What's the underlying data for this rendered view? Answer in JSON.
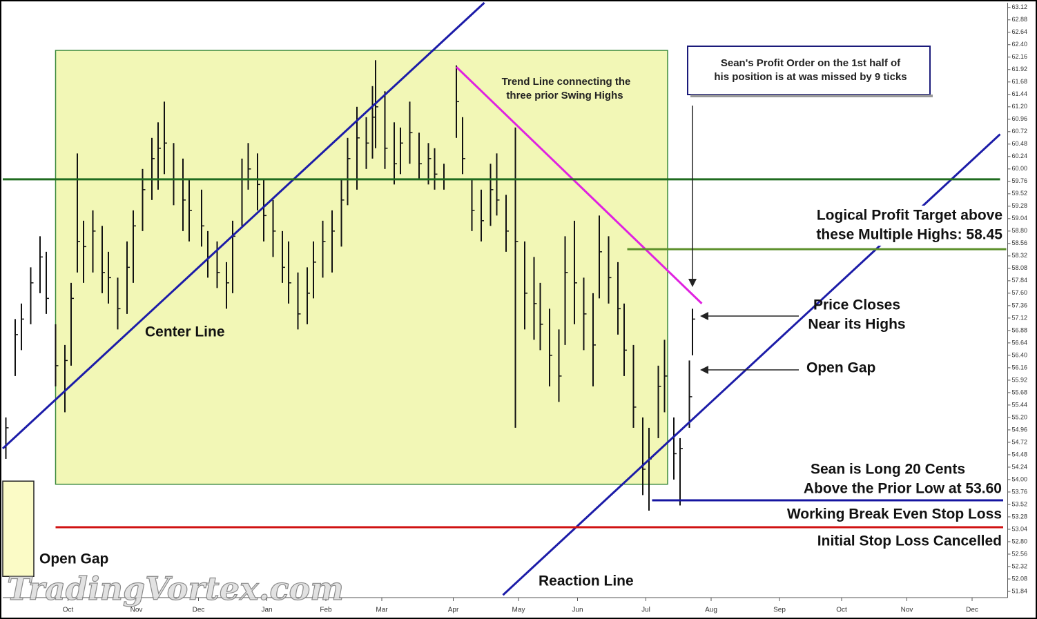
{
  "chart_data": {
    "type": "ohlc",
    "xlim": [
      0,
      323
    ],
    "ylim": [
      51.72,
      63.21
    ],
    "xticks": [
      {
        "value": 21,
        "label": "Oct"
      },
      {
        "value": 43,
        "label": "Nov"
      },
      {
        "value": 63,
        "label": "Dec"
      },
      {
        "value": 85,
        "label": "Jan"
      },
      {
        "value": 104,
        "label": "Feb"
      },
      {
        "value": 122,
        "label": "Mar"
      },
      {
        "value": 145,
        "label": "Apr"
      },
      {
        "value": 166,
        "label": "May"
      },
      {
        "value": 185,
        "label": "Jun"
      },
      {
        "value": 207,
        "label": "Jul"
      },
      {
        "value": 228,
        "label": "Aug"
      },
      {
        "value": 250,
        "label": "Sep"
      },
      {
        "value": 270,
        "label": "Oct"
      },
      {
        "value": 291,
        "label": "Nov"
      },
      {
        "value": 312,
        "label": "Dec"
      }
    ],
    "yticks": [
      63.12,
      62.88,
      62.64,
      {
        "value": 62.4,
        "label": "62.40"
      },
      62.16,
      61.92,
      61.68,
      61.44,
      {
        "value": 61.2,
        "label": "61.20"
      },
      60.96,
      60.72,
      60.48,
      60.24,
      {
        "value": 60,
        "label": "60.00"
      },
      59.76,
      59.52,
      59.28,
      59.04,
      {
        "value": 58.8,
        "label": "58.80"
      },
      58.56,
      58.32,
      58.08,
      57.84,
      {
        "value": 57.6,
        "label": "57.60"
      },
      57.36,
      57.12,
      56.88,
      56.64,
      {
        "value": 56.4,
        "label": "56.40"
      },
      56.16,
      55.92,
      55.68,
      55.44,
      {
        "value": 55.2,
        "label": "55.20"
      },
      54.96,
      54.72,
      54.48,
      54.24,
      {
        "value": 54,
        "label": "54.00"
      },
      53.76,
      53.52,
      53.28,
      53.04,
      {
        "value": 52.8,
        "label": "52.80"
      },
      52.56,
      52.32,
      52.08,
      51.84
    ],
    "color": "#111111",
    "bars": [
      {
        "x": 1,
        "high": 55.2,
        "low": 54.4,
        "close": 55.0
      },
      {
        "x": 4,
        "high": 57.1,
        "low": 56.0,
        "close": 56.8
      },
      {
        "x": 6,
        "high": 57.4,
        "low": 56.5,
        "close": 57.1
      },
      {
        "x": 9,
        "high": 58.1,
        "low": 57.0,
        "close": 57.8
      },
      {
        "x": 12,
        "high": 58.7,
        "low": 57.6,
        "close": 58.3
      },
      {
        "x": 14,
        "high": 58.4,
        "low": 57.2,
        "close": 57.5
      },
      {
        "x": 17,
        "high": 57.0,
        "low": 55.8,
        "close": 56.2
      },
      {
        "x": 20,
        "high": 56.6,
        "low": 55.3,
        "close": 56.3
      },
      {
        "x": 22,
        "high": 57.8,
        "low": 56.2,
        "close": 57.5
      },
      {
        "x": 24,
        "high": 60.3,
        "low": 58.0,
        "close": 58.6
      },
      {
        "x": 26,
        "high": 59.0,
        "low": 57.8,
        "close": 58.5
      },
      {
        "x": 29,
        "high": 59.2,
        "low": 58.0,
        "close": 58.8
      },
      {
        "x": 32,
        "high": 58.9,
        "low": 57.6,
        "close": 58.0
      },
      {
        "x": 34,
        "high": 58.4,
        "low": 57.4,
        "close": 57.9
      },
      {
        "x": 37,
        "high": 57.9,
        "low": 56.9,
        "close": 57.3
      },
      {
        "x": 40,
        "high": 58.6,
        "low": 57.2,
        "close": 58.1
      },
      {
        "x": 42,
        "high": 59.2,
        "low": 57.8,
        "close": 58.9
      },
      {
        "x": 45,
        "high": 60.0,
        "low": 58.8,
        "close": 59.6
      },
      {
        "x": 48,
        "high": 60.6,
        "low": 59.4,
        "close": 60.2
      },
      {
        "x": 50,
        "high": 60.9,
        "low": 59.6,
        "close": 60.4
      },
      {
        "x": 52,
        "high": 61.3,
        "low": 59.9,
        "close": 60.5
      },
      {
        "x": 55,
        "high": 60.5,
        "low": 59.3,
        "close": 59.8
      },
      {
        "x": 58,
        "high": 60.2,
        "low": 58.8,
        "close": 59.4
      },
      {
        "x": 60,
        "high": 59.8,
        "low": 58.6,
        "close": 59.2
      },
      {
        "x": 64,
        "high": 59.6,
        "low": 58.5,
        "close": 58.9
      },
      {
        "x": 66,
        "high": 58.8,
        "low": 57.9,
        "close": 58.3
      },
      {
        "x": 69,
        "high": 58.6,
        "low": 57.7,
        "close": 58.0
      },
      {
        "x": 72,
        "high": 58.2,
        "low": 57.3,
        "close": 57.8
      },
      {
        "x": 74,
        "high": 59.0,
        "low": 57.6,
        "close": 58.7
      },
      {
        "x": 77,
        "high": 60.2,
        "low": 58.9,
        "close": 59.8
      },
      {
        "x": 79,
        "high": 60.5,
        "low": 59.6,
        "close": 60.0
      },
      {
        "x": 82,
        "high": 60.3,
        "low": 59.2,
        "close": 59.7
      },
      {
        "x": 84,
        "high": 59.8,
        "low": 58.6,
        "close": 59.1
      },
      {
        "x": 87,
        "high": 59.4,
        "low": 58.3,
        "close": 58.8
      },
      {
        "x": 90,
        "high": 58.8,
        "low": 57.8,
        "close": 58.1
      },
      {
        "x": 92,
        "high": 58.6,
        "low": 57.4,
        "close": 57.8
      },
      {
        "x": 95,
        "high": 58.0,
        "low": 56.9,
        "close": 57.2
      },
      {
        "x": 98,
        "high": 58.1,
        "low": 57.0,
        "close": 57.6
      },
      {
        "x": 100,
        "high": 58.6,
        "low": 57.5,
        "close": 58.2
      },
      {
        "x": 103,
        "high": 59.0,
        "low": 57.9,
        "close": 58.6
      },
      {
        "x": 106,
        "high": 59.2,
        "low": 58.0,
        "close": 58.8
      },
      {
        "x": 109,
        "high": 59.8,
        "low": 58.5,
        "close": 59.4
      },
      {
        "x": 111,
        "high": 60.6,
        "low": 59.3,
        "close": 60.2
      },
      {
        "x": 114,
        "high": 61.2,
        "low": 59.6,
        "close": 60.6
      },
      {
        "x": 117,
        "high": 61.0,
        "low": 60.0,
        "close": 60.5
      },
      {
        "x": 119,
        "high": 61.6,
        "low": 60.2,
        "close": 61.0
      },
      {
        "x": 120,
        "high": 62.1,
        "low": 60.4,
        "close": 61.2
      },
      {
        "x": 123,
        "high": 61.5,
        "low": 60.0,
        "close": 60.4
      },
      {
        "x": 126,
        "high": 60.9,
        "low": 59.7,
        "close": 60.1
      },
      {
        "x": 128,
        "high": 60.8,
        "low": 59.9,
        "close": 60.5
      },
      {
        "x": 131,
        "high": 61.3,
        "low": 60.1,
        "close": 60.7
      },
      {
        "x": 134,
        "high": 60.7,
        "low": 59.8,
        "close": 60.1
      },
      {
        "x": 137,
        "high": 60.5,
        "low": 59.7,
        "close": 60.2
      },
      {
        "x": 139,
        "high": 60.4,
        "low": 59.6,
        "close": 59.9
      },
      {
        "x": 142,
        "high": 60.1,
        "low": 59.6,
        "close": 59.8
      },
      {
        "x": 146,
        "high": 62.0,
        "low": 60.6,
        "close": 61.3
      },
      {
        "x": 148,
        "high": 61.0,
        "low": 59.9,
        "close": 60.2
      },
      {
        "x": 151,
        "high": 59.8,
        "low": 58.8,
        "close": 59.2
      },
      {
        "x": 154,
        "high": 59.6,
        "low": 58.6,
        "close": 59.0
      },
      {
        "x": 157,
        "high": 60.1,
        "low": 58.9,
        "close": 59.6
      },
      {
        "x": 159,
        "high": 60.3,
        "low": 59.1,
        "close": 59.4
      },
      {
        "x": 162,
        "high": 59.5,
        "low": 58.4,
        "close": 58.8
      },
      {
        "x": 165,
        "high": 60.8,
        "low": 55.0,
        "close": 58.6
      },
      {
        "x": 168,
        "high": 58.6,
        "low": 56.9,
        "close": 57.6
      },
      {
        "x": 171,
        "high": 58.3,
        "low": 56.7,
        "close": 57.4
      },
      {
        "x": 173,
        "high": 57.8,
        "low": 56.5,
        "close": 57.0
      },
      {
        "x": 176,
        "high": 57.3,
        "low": 55.8,
        "close": 56.4
      },
      {
        "x": 179,
        "high": 56.9,
        "low": 55.5,
        "close": 56.0
      },
      {
        "x": 181,
        "high": 58.7,
        "low": 56.6,
        "close": 58.0
      },
      {
        "x": 184,
        "high": 59.0,
        "low": 57.0,
        "close": 57.8
      },
      {
        "x": 187,
        "high": 57.9,
        "low": 56.5,
        "close": 57.2
      },
      {
        "x": 190,
        "high": 57.6,
        "low": 55.8,
        "close": 56.6
      },
      {
        "x": 192,
        "high": 59.1,
        "low": 57.5,
        "close": 58.4
      },
      {
        "x": 195,
        "high": 58.7,
        "low": 57.4,
        "close": 57.9
      },
      {
        "x": 198,
        "high": 58.2,
        "low": 56.8,
        "close": 57.3
      },
      {
        "x": 200,
        "high": 57.4,
        "low": 56.0,
        "close": 56.5
      },
      {
        "x": 203,
        "high": 56.6,
        "low": 55.0,
        "close": 55.4
      },
      {
        "x": 206,
        "high": 55.2,
        "low": 53.7,
        "close": 54.2
      },
      {
        "x": 208,
        "high": 55.0,
        "low": 53.4,
        "close": 54.4
      },
      {
        "x": 211,
        "high": 56.2,
        "low": 54.8,
        "close": 55.8
      },
      {
        "x": 213,
        "high": 56.7,
        "low": 55.3,
        "close": 56.0
      },
      {
        "x": 216,
        "high": 55.2,
        "low": 54.0,
        "close": 54.5
      },
      {
        "x": 218,
        "high": 54.8,
        "low": 53.5,
        "close": 54.6
      },
      {
        "x": 221,
        "high": 56.3,
        "low": 55.0,
        "close": 55.6
      },
      {
        "x": 222,
        "high": 57.3,
        "low": 56.4,
        "close": 57.1
      }
    ],
    "zones": [
      {
        "x": [
          17,
          214
        ],
        "y": [
          53.91,
          62.29
        ],
        "color": "#f2f7b6"
      },
      {
        "x": [
          0,
          10
        ],
        "y": [
          52.13,
          53.97
        ],
        "color": "#fbfbc6"
      }
    ],
    "lines": [
      {
        "x": [
          0,
          155
        ],
        "y": [
          54.6,
          63.21
        ],
        "color": "#1c1ca8"
      },
      {
        "x": [
          146,
          225
        ],
        "y": [
          61.97,
          57.4
        ],
        "color": "#e022e0"
      },
      {
        "x": [
          161,
          321
        ],
        "y": [
          51.77,
          60.67
        ],
        "color": "#1c1ca8"
      },
      {
        "x": [
          0,
          321
        ],
        "y": [
          59.8,
          59.8
        ],
        "color": "#1f6b1f"
      },
      {
        "x": [
          201,
          323
        ],
        "y": [
          58.45,
          58.45
        ],
        "color": "#5b8f2a"
      },
      {
        "x": [
          209,
          322
        ],
        "y": [
          53.6,
          53.6
        ],
        "color": "#1414a0"
      },
      {
        "x": [
          17,
          322
        ],
        "y": [
          53.08,
          53.08
        ],
        "color": "#d01212"
      }
    ],
    "annotations": [
      [
        "Trend Line connecting the",
        "three prior Swing Highs"
      ],
      [
        "Sean's Profit Order on the 1st half of",
        "his position is at was missed by 9 ticks"
      ],
      [
        "Logical Profit Target above",
        "these Multiple Highs: 58.45"
      ],
      [
        "Price Closes",
        "Near its Highs"
      ],
      [
        "Open Gap"
      ],
      [
        "Center Line"
      ],
      [
        "Sean is Long 20 Cents",
        "Above the Prior Low at 53.60"
      ],
      [
        "Working Break Even Stop Loss"
      ],
      [
        "Initial Stop Loss Cancelled"
      ],
      [
        "Open Gap"
      ],
      [
        "Reaction Line"
      ]
    ],
    "watermark": "TradingVortex.com"
  }
}
